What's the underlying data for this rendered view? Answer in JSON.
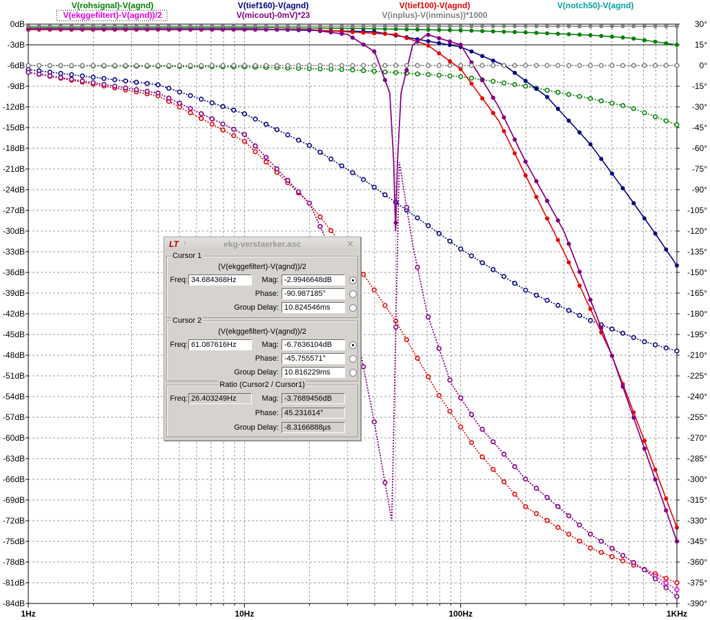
{
  "legend": [
    {
      "label": "V(rohsignal)-V(agnd)",
      "color": "#008000"
    },
    {
      "label": "V(ekggefiltert)-V(agnd))/2",
      "color": "#e600e6"
    },
    {
      "label": "V(tief160)-V(agnd)",
      "color": "#000080"
    },
    {
      "label": "V(micout)-0mV)*23",
      "color": "#800080"
    },
    {
      "label": "V(tief100)-V(agnd)",
      "color": "#e60000"
    },
    {
      "label": "V(inplus)-V(inminus))*1000",
      "color": "#808080"
    },
    {
      "label": "V(notch50)-V(agnd)",
      "color": "#00a0a0"
    }
  ],
  "chart_data": {
    "type": "line",
    "title": "",
    "xscale": "log",
    "xlim": [
      1,
      1000
    ],
    "x_ticks": [
      "1Hz",
      "10Hz",
      "100Hz",
      "1KHz"
    ],
    "ylim_left": [
      -84,
      0
    ],
    "y_left_ticks": [
      "0dB",
      "-3dB",
      "-6dB",
      "-9dB",
      "-12dB",
      "-15dB",
      "-18dB",
      "-21dB",
      "-24dB",
      "-27dB",
      "-30dB",
      "-33dB",
      "-36dB",
      "-39dB",
      "-42dB",
      "-45dB",
      "-48dB",
      "-51dB",
      "-54dB",
      "-57dB",
      "-60dB",
      "-63dB",
      "-66dB",
      "-69dB",
      "-72dB",
      "-75dB",
      "-78dB",
      "-81dB",
      "-84dB"
    ],
    "ylim_right": [
      -390,
      30
    ],
    "y_right_ticks": [
      "30°",
      "15°",
      "0°",
      "-15°",
      "-30°",
      "-45°",
      "-60°",
      "-75°",
      "-90°",
      "-105°",
      "-120°",
      "-135°",
      "-150°",
      "-165°",
      "-180°",
      "-195°",
      "-210°",
      "-225°",
      "-240°",
      "-255°",
      "-270°",
      "-285°",
      "-300°",
      "-315°",
      "-330°",
      "-345°",
      "-360°",
      "-375°",
      "-390°"
    ],
    "grid": true,
    "series": [
      {
        "name": "V(rohsignal)-V(agnd)",
        "color": "#008000",
        "kind": "mag",
        "x": [
          1,
          10,
          30,
          100,
          200,
          400,
          600,
          1000
        ],
        "y": [
          -0.5,
          -0.5,
          -0.6,
          -0.9,
          -1.2,
          -1.6,
          -2.0,
          -3.0
        ]
      },
      {
        "name": "V(rohsignal)-V(agnd)",
        "color": "#008000",
        "kind": "phase",
        "x": [
          1,
          10,
          30,
          100,
          200,
          400,
          600,
          1000
        ],
        "y": [
          0,
          -1,
          -3,
          -8,
          -15,
          -24,
          -30,
          -43
        ]
      },
      {
        "name": "V(tief160)-V(agnd)",
        "color": "#000080",
        "kind": "mag",
        "x": [
          1,
          10,
          40,
          100,
          160,
          250,
          400,
          600,
          800,
          1000
        ],
        "y": [
          -0.7,
          -0.7,
          -1.1,
          -3.3,
          -6.0,
          -10.5,
          -17.5,
          -25.0,
          -30.5,
          -35.0
        ]
      },
      {
        "name": "V(tief160)-V(agnd)",
        "color": "#000080",
        "kind": "phase",
        "x": [
          1,
          4,
          10,
          20,
          35,
          60,
          100,
          200,
          400,
          700,
          1000
        ],
        "y": [
          -3,
          -14,
          -35,
          -58,
          -82,
          -108,
          -133,
          -163,
          -185,
          -200,
          -207
        ]
      },
      {
        "name": "V(tief100)-V(agnd)",
        "color": "#e60000",
        "kind": "mag",
        "x": [
          1,
          20,
          50,
          70,
          100,
          150,
          200,
          300,
          500,
          700,
          1000
        ],
        "y": [
          -0.8,
          -0.8,
          -1.5,
          -3.0,
          -6.5,
          -14.0,
          -22.0,
          -33.0,
          -48.0,
          -60.0,
          -73.0
        ]
      },
      {
        "name": "V(tief100)-V(agnd)",
        "color": "#e60000",
        "kind": "phase",
        "x": [
          1,
          4,
          10,
          20,
          30,
          50,
          80,
          120,
          200,
          400,
          700,
          1000
        ],
        "y": [
          -5,
          -22,
          -55,
          -100,
          -135,
          -185,
          -240,
          -280,
          -320,
          -350,
          -365,
          -375
        ]
      },
      {
        "name": "V(ekggefiltert)-V(agnd))/2",
        "color": "#e600e6",
        "kind": "mag",
        "x": [
          1,
          20,
          30,
          40,
          47,
          49,
          50,
          51,
          53,
          60,
          70,
          100,
          150,
          200,
          300,
          500,
          1000
        ],
        "y": [
          -0.7,
          -0.8,
          -1.5,
          -4.0,
          -10.0,
          -20.0,
          -30.0,
          -20.0,
          -10.0,
          -3.0,
          -1.5,
          -3.0,
          -12.0,
          -20.0,
          -30.0,
          -48.0,
          -75.0
        ]
      },
      {
        "name": "V(ekggefiltert)-V(agnd))/2",
        "color": "#e600e6",
        "kind": "phase",
        "x": [
          1,
          4,
          10,
          20,
          30,
          40,
          48,
          52,
          60,
          70,
          90,
          120,
          200,
          400,
          700,
          1000
        ],
        "y": [
          -5,
          -20,
          -50,
          -100,
          -160,
          -260,
          -330,
          -70,
          -130,
          -180,
          -230,
          -260,
          -300,
          -340,
          -365,
          -380
        ]
      },
      {
        "name": "V(micout)-0mV)*23",
        "color": "#800080",
        "kind": "mag",
        "x": [
          1,
          20,
          30,
          40,
          47,
          49,
          50,
          51,
          53,
          60,
          70,
          100,
          150,
          200,
          300,
          500,
          1000
        ],
        "y": [
          -0.7,
          -0.8,
          -1.5,
          -4.0,
          -10.0,
          -20.0,
          -30.0,
          -20.0,
          -10.0,
          -3.0,
          -1.5,
          -3.0,
          -12.0,
          -20.0,
          -30.0,
          -48.0,
          -75.0
        ]
      },
      {
        "name": "V(micout)-0mV)*23",
        "color": "#800080",
        "kind": "phase",
        "x": [
          1,
          4,
          10,
          20,
          30,
          40,
          48,
          52,
          60,
          70,
          90,
          120,
          200,
          400,
          700,
          1000
        ],
        "y": [
          -5,
          -20,
          -50,
          -100,
          -160,
          -260,
          -330,
          -70,
          -130,
          -180,
          -230,
          -260,
          -300,
          -340,
          -365,
          -385
        ]
      },
      {
        "name": "V(inplus)-V(inminus))*1000",
        "color": "#808080",
        "kind": "mag",
        "x": [
          1,
          10,
          100,
          1000
        ],
        "y": [
          -0.3,
          -0.3,
          -0.3,
          -0.3
        ]
      },
      {
        "name": "V(inplus)-V(inminus))*1000",
        "color": "#808080",
        "kind": "phase",
        "x": [
          1,
          10,
          100,
          1000
        ],
        "y": [
          0,
          0,
          0,
          0
        ]
      }
    ]
  },
  "dialog": {
    "title": "ekg-verstaerker.asc",
    "cursor1": {
      "heading": "Cursor 1",
      "expr": "(V(ekggefiltert)-V(agnd))/2",
      "freq_label": "Freq:",
      "freq": "34.684368Hz",
      "mag_label": "Mag:",
      "mag": "-2.9946648dB",
      "phase_label": "Phase:",
      "phase": "-90.987185°",
      "gd_label": "Group Delay:",
      "gd": "10.824546ms"
    },
    "cursor2": {
      "heading": "Cursor 2",
      "expr": "(V(ekggefiltert)-V(agnd))/2",
      "freq_label": "Freq:",
      "freq": "61.087616Hz",
      "mag_label": "Mag:",
      "mag": "-6.7636104dB",
      "phase_label": "Phase:",
      "phase": "-45.755571°",
      "gd_label": "Group Delay:",
      "gd": "10.816229ms"
    },
    "ratio": {
      "heading": "Ratio (Cursor2 / Cursor1)",
      "freq_label": "Freq:",
      "freq": "26.403249Hz",
      "mag_label": "Mag:",
      "mag": "-3.7689456dB",
      "phase_label": "Phase:",
      "phase": "45.231614°",
      "gd_label": "Group Delay:",
      "gd": "-8.3166888µs"
    }
  }
}
